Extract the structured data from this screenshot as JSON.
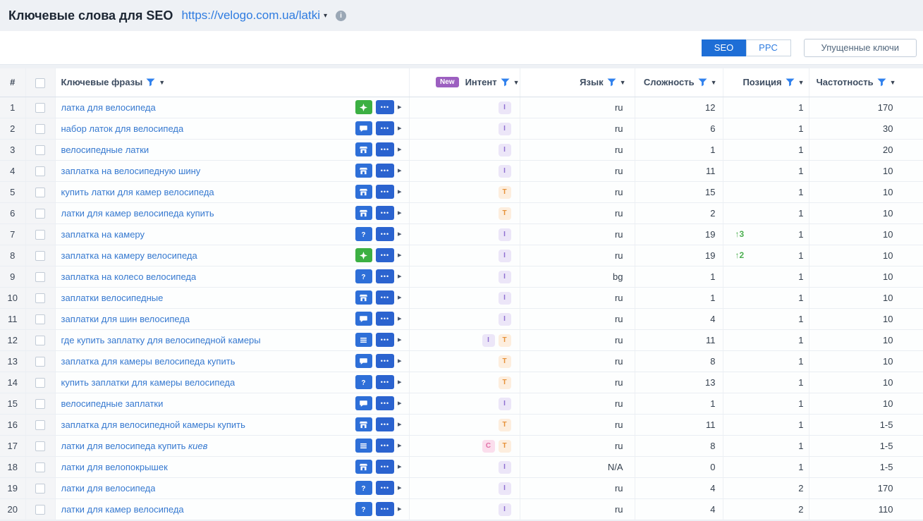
{
  "header": {
    "title": "Ключевые слова для SEO",
    "domain": "https://velogo.com.ua/latki"
  },
  "toolbar": {
    "seo_label": "SEO",
    "ppc_label": "PPC",
    "missed_label": "Упущенные ключи"
  },
  "table": {
    "headers": {
      "number": "#",
      "keywords": "Ключевые фразы",
      "new_badge": "New",
      "intent": "Интент",
      "language": "Язык",
      "difficulty": "Сложность",
      "position": "Позиция",
      "frequency": "Частотность"
    },
    "rows": [
      {
        "num": "1",
        "keyword": "латка для велосипеда",
        "keyword_italic": "",
        "icon": "sparkle",
        "icon_color": "green",
        "intents": [
          "I"
        ],
        "lang": "ru",
        "difficulty": "12",
        "pos_change": "",
        "position": "1",
        "frequency": "170"
      },
      {
        "num": "2",
        "keyword": "набор латок для велосипеда",
        "keyword_italic": "",
        "icon": "chat",
        "icon_color": "blue",
        "intents": [
          "I"
        ],
        "lang": "ru",
        "difficulty": "6",
        "pos_change": "",
        "position": "1",
        "frequency": "30"
      },
      {
        "num": "3",
        "keyword": "велосипедные латки",
        "keyword_italic": "",
        "icon": "storefront",
        "icon_color": "blue",
        "intents": [
          "I"
        ],
        "lang": "ru",
        "difficulty": "1",
        "pos_change": "",
        "position": "1",
        "frequency": "20"
      },
      {
        "num": "4",
        "keyword": "заплатка на велосипедную шину",
        "keyword_italic": "",
        "icon": "storefront",
        "icon_color": "blue",
        "intents": [
          "I"
        ],
        "lang": "ru",
        "difficulty": "11",
        "pos_change": "",
        "position": "1",
        "frequency": "10"
      },
      {
        "num": "5",
        "keyword": "купить латки для камер велосипеда",
        "keyword_italic": "",
        "icon": "storefront",
        "icon_color": "blue",
        "intents": [
          "T"
        ],
        "lang": "ru",
        "difficulty": "15",
        "pos_change": "",
        "position": "1",
        "frequency": "10"
      },
      {
        "num": "6",
        "keyword": "латки для камер велосипеда купить",
        "keyword_italic": "",
        "icon": "storefront",
        "icon_color": "blue",
        "intents": [
          "T"
        ],
        "lang": "ru",
        "difficulty": "2",
        "pos_change": "",
        "position": "1",
        "frequency": "10"
      },
      {
        "num": "7",
        "keyword": "заплатка на камеру",
        "keyword_italic": "",
        "icon": "question",
        "icon_color": "blue",
        "intents": [
          "I"
        ],
        "lang": "ru",
        "difficulty": "19",
        "pos_change": "↑3",
        "position": "1",
        "frequency": "10"
      },
      {
        "num": "8",
        "keyword": "заплатка на камеру велосипеда",
        "keyword_italic": "",
        "icon": "sparkle",
        "icon_color": "green",
        "intents": [
          "I"
        ],
        "lang": "ru",
        "difficulty": "19",
        "pos_change": "↑2",
        "position": "1",
        "frequency": "10"
      },
      {
        "num": "9",
        "keyword": "заплатка на колесо велосипеда",
        "keyword_italic": "",
        "icon": "question",
        "icon_color": "blue",
        "intents": [
          "I"
        ],
        "lang": "bg",
        "difficulty": "1",
        "pos_change": "",
        "position": "1",
        "frequency": "10"
      },
      {
        "num": "10",
        "keyword": "заплатки велосипедные",
        "keyword_italic": "",
        "icon": "storefront",
        "icon_color": "blue",
        "intents": [
          "I"
        ],
        "lang": "ru",
        "difficulty": "1",
        "pos_change": "",
        "position": "1",
        "frequency": "10"
      },
      {
        "num": "11",
        "keyword": "заплатки для шин велосипеда",
        "keyword_italic": "",
        "icon": "chat",
        "icon_color": "blue",
        "intents": [
          "I"
        ],
        "lang": "ru",
        "difficulty": "4",
        "pos_change": "",
        "position": "1",
        "frequency": "10"
      },
      {
        "num": "12",
        "keyword": "где купить заплатку для велосипедной камеры",
        "keyword_italic": "",
        "icon": "list",
        "icon_color": "blue",
        "intents": [
          "I",
          "T"
        ],
        "lang": "ru",
        "difficulty": "11",
        "pos_change": "",
        "position": "1",
        "frequency": "10"
      },
      {
        "num": "13",
        "keyword": "заплатка для камеры велосипеда купить",
        "keyword_italic": "",
        "icon": "chat",
        "icon_color": "blue",
        "intents": [
          "T"
        ],
        "lang": "ru",
        "difficulty": "8",
        "pos_change": "",
        "position": "1",
        "frequency": "10"
      },
      {
        "num": "14",
        "keyword": "купить заплатки для камеры велосипеда",
        "keyword_italic": "",
        "icon": "question",
        "icon_color": "blue",
        "intents": [
          "T"
        ],
        "lang": "ru",
        "difficulty": "13",
        "pos_change": "",
        "position": "1",
        "frequency": "10"
      },
      {
        "num": "15",
        "keyword": "велосипедные заплатки",
        "keyword_italic": "",
        "icon": "chat",
        "icon_color": "blue",
        "intents": [
          "I"
        ],
        "lang": "ru",
        "difficulty": "1",
        "pos_change": "",
        "position": "1",
        "frequency": "10"
      },
      {
        "num": "16",
        "keyword": "заплатка для велосипедной камеры купить",
        "keyword_italic": "",
        "icon": "storefront",
        "icon_color": "blue",
        "intents": [
          "T"
        ],
        "lang": "ru",
        "difficulty": "11",
        "pos_change": "",
        "position": "1",
        "frequency": "1-5"
      },
      {
        "num": "17",
        "keyword": "латки для велосипеда купить ",
        "keyword_italic": "киев",
        "icon": "list",
        "icon_color": "blue",
        "intents": [
          "C",
          "T"
        ],
        "lang": "ru",
        "difficulty": "8",
        "pos_change": "",
        "position": "1",
        "frequency": "1-5"
      },
      {
        "num": "18",
        "keyword": "латки для велопокрышек",
        "keyword_italic": "",
        "icon": "storefront",
        "icon_color": "blue",
        "intents": [
          "I"
        ],
        "lang": "N/A",
        "difficulty": "0",
        "pos_change": "",
        "position": "1",
        "frequency": "1-5"
      },
      {
        "num": "19",
        "keyword": "латки для велосипеда",
        "keyword_italic": "",
        "icon": "question",
        "icon_color": "blue",
        "intents": [
          "I"
        ],
        "lang": "ru",
        "difficulty": "4",
        "pos_change": "",
        "position": "2",
        "frequency": "170"
      },
      {
        "num": "20",
        "keyword": "латки для камер велосипеда",
        "keyword_italic": "",
        "icon": "question",
        "icon_color": "blue",
        "intents": [
          "I"
        ],
        "lang": "ru",
        "difficulty": "4",
        "pos_change": "",
        "position": "2",
        "frequency": "110"
      }
    ]
  }
}
